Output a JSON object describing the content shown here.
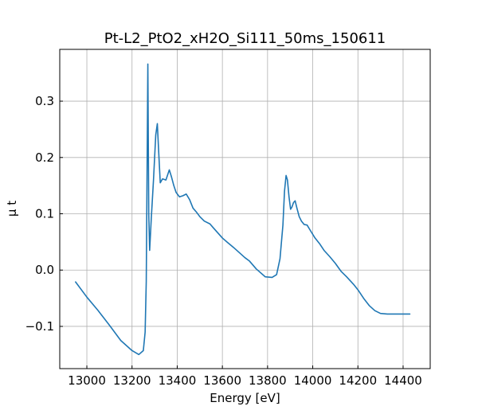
{
  "chart_data": {
    "type": "line",
    "title": "Pt-L2_PtO2_xH2O_Si111_50ms_150611",
    "xlabel": "Energy [eV]",
    "ylabel": "μ t",
    "xlim": [
      12880,
      14520
    ],
    "ylim": [
      -0.175,
      0.392
    ],
    "xticks": [
      13000,
      13200,
      13400,
      13600,
      13800,
      14000,
      14200,
      14400
    ],
    "xtick_labels": [
      "13000",
      "13200",
      "13400",
      "13600",
      "13800",
      "14000",
      "14200",
      "14400"
    ],
    "yticks": [
      -0.1,
      0.0,
      0.1,
      0.2,
      0.3
    ],
    "ytick_labels": [
      "−0.1",
      "0.0",
      "0.1",
      "0.2",
      "0.3"
    ],
    "grid": true,
    "legend": "none",
    "series": [
      {
        "color": "#1f77b4",
        "x": [
          12950,
          13000,
          13050,
          13100,
          13150,
          13200,
          13230,
          13250,
          13258,
          13263,
          13267,
          13270,
          13274,
          13278,
          13285,
          13295,
          13305,
          13312,
          13318,
          13325,
          13335,
          13350,
          13365,
          13375,
          13385,
          13395,
          13410,
          13425,
          13440,
          13455,
          13470,
          13485,
          13500,
          13520,
          13545,
          13560,
          13600,
          13620,
          13650,
          13700,
          13720,
          13750,
          13790,
          13820,
          13840,
          13855,
          13868,
          13875,
          13882,
          13888,
          13895,
          13902,
          13908,
          13915,
          13922,
          13930,
          13940,
          13950,
          13962,
          13975,
          13990,
          14010,
          14030,
          14050,
          14075,
          14100,
          14125,
          14150,
          14180,
          14200,
          14225,
          14250,
          14275,
          14300,
          14330,
          14360,
          14400,
          14430
        ],
        "y": [
          -0.021,
          -0.048,
          -0.072,
          -0.098,
          -0.125,
          -0.143,
          -0.15,
          -0.143,
          -0.11,
          -0.02,
          0.2,
          0.366,
          0.1,
          0.035,
          0.09,
          0.16,
          0.24,
          0.26,
          0.21,
          0.155,
          0.162,
          0.16,
          0.178,
          0.165,
          0.15,
          0.138,
          0.13,
          0.132,
          0.135,
          0.125,
          0.11,
          0.103,
          0.095,
          0.087,
          0.082,
          0.075,
          0.057,
          0.05,
          0.04,
          0.022,
          0.016,
          0.002,
          -0.012,
          -0.013,
          -0.008,
          0.02,
          0.08,
          0.14,
          0.168,
          0.16,
          0.13,
          0.108,
          0.112,
          0.12,
          0.123,
          0.11,
          0.095,
          0.087,
          0.081,
          0.08,
          0.07,
          0.057,
          0.047,
          0.035,
          0.024,
          0.012,
          -0.002,
          -0.012,
          -0.025,
          -0.035,
          -0.05,
          -0.063,
          -0.072,
          -0.077,
          -0.078,
          -0.078,
          -0.078,
          -0.078
        ]
      }
    ]
  }
}
